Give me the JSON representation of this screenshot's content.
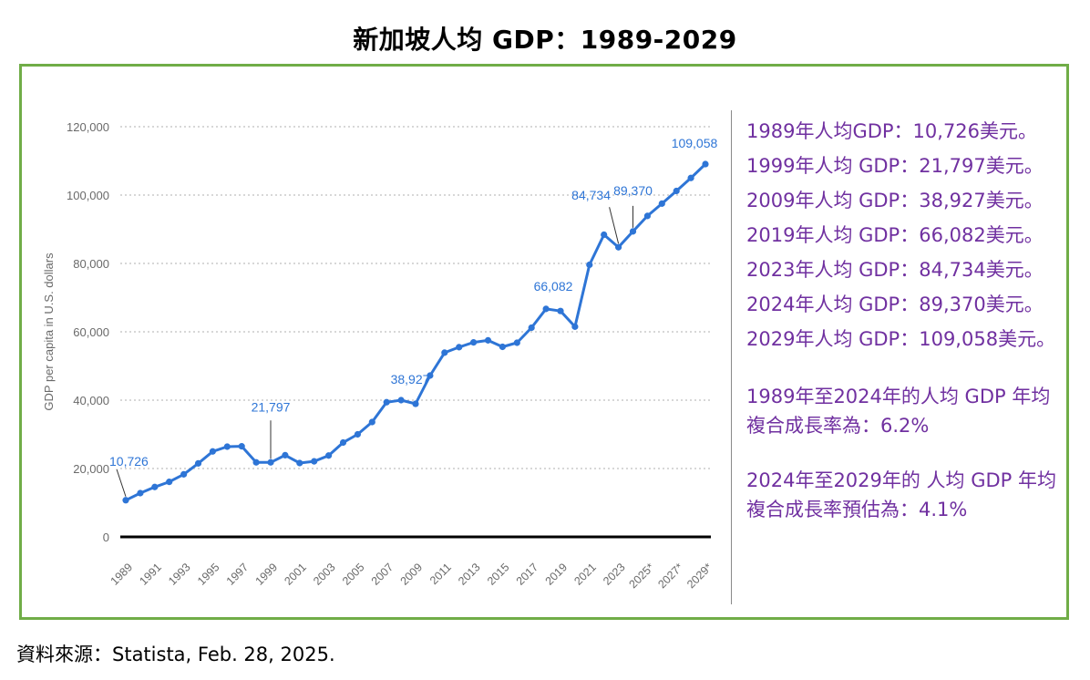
{
  "title": "新加坡人均 GDP：1989-2029",
  "source": "資料來源：Statista, Feb. 28, 2025.",
  "colors": {
    "frame": "#70ad47",
    "line": "#2e75d6",
    "annotation": "#2e75d6",
    "panel_text": "#7030a0",
    "axis_text": "#6a6a6a",
    "grid": "#bfbfbf"
  },
  "stats": [
    "1989年人均GDP：10,726美元。",
    "1999年人均 GDP：21,797美元。",
    "2009年人均 GDP：38,927美元。",
    "2019年人均 GDP：66,082美元。",
    "2023年人均 GDP：84,734美元。",
    "2024年人均 GDP：89,370美元。",
    "2029年人均 GDP：109,058美元。"
  ],
  "notes": [
    "1989年至2024年的人均 GDP 年均複合成長率為：6.2%",
    "2024年至2029年的 人均 GDP 年均複合成長率預估為：4.1%"
  ],
  "chart_data": {
    "type": "line",
    "ylabel": "GDP per capita in U.S. dollars",
    "xlabel": "",
    "ylim": [
      0,
      120000
    ],
    "yticks": [
      0,
      20000,
      40000,
      60000,
      80000,
      100000,
      120000
    ],
    "ytick_labels": [
      "0",
      "20,000",
      "40,000",
      "60,000",
      "80,000",
      "100,000",
      "120,000"
    ],
    "grid": true,
    "x": [
      "1989",
      "1990",
      "1991",
      "1992",
      "1993",
      "1994",
      "1995",
      "1996",
      "1997",
      "1998",
      "1999",
      "2000",
      "2001",
      "2002",
      "2003",
      "2004",
      "2005",
      "2006",
      "2007",
      "2008",
      "2009",
      "2010",
      "2011",
      "2012",
      "2013",
      "2014",
      "2015",
      "2016",
      "2017",
      "2018",
      "2019",
      "2020",
      "2021",
      "2022",
      "2023",
      "2024",
      "2025*",
      "2026*",
      "2027*",
      "2028*",
      "2029*"
    ],
    "xtick_labels": [
      "1989",
      "1991",
      "1993",
      "1995",
      "1997",
      "1999",
      "2001",
      "2003",
      "2005",
      "2007",
      "2009",
      "2011",
      "2013",
      "2015",
      "2017",
      "2019",
      "2021",
      "2023",
      "2025*",
      "2027*",
      "2029*"
    ],
    "series": [
      {
        "values": [
          10726,
          12800,
          14600,
          16100,
          18300,
          21500,
          25000,
          26400,
          26500,
          21800,
          21797,
          23900,
          21600,
          22100,
          23800,
          27600,
          30000,
          33600,
          39400,
          40000,
          38927,
          47200,
          53900,
          55500,
          56900,
          57500,
          55600,
          56800,
          61200,
          66700,
          66082,
          61500,
          79600,
          88400,
          84734,
          89370,
          93900,
          97500,
          101200,
          105000,
          109058
        ]
      }
    ],
    "annotations": [
      {
        "x": "1989",
        "label": "10,726"
      },
      {
        "x": "1999",
        "label": "21,797"
      },
      {
        "x": "2009",
        "label": "38,927"
      },
      {
        "x": "2019",
        "label": "66,082"
      },
      {
        "x": "2023",
        "label": "84,734"
      },
      {
        "x": "2024",
        "label": "89,370"
      },
      {
        "x": "2029*",
        "label": "109,058"
      }
    ]
  }
}
